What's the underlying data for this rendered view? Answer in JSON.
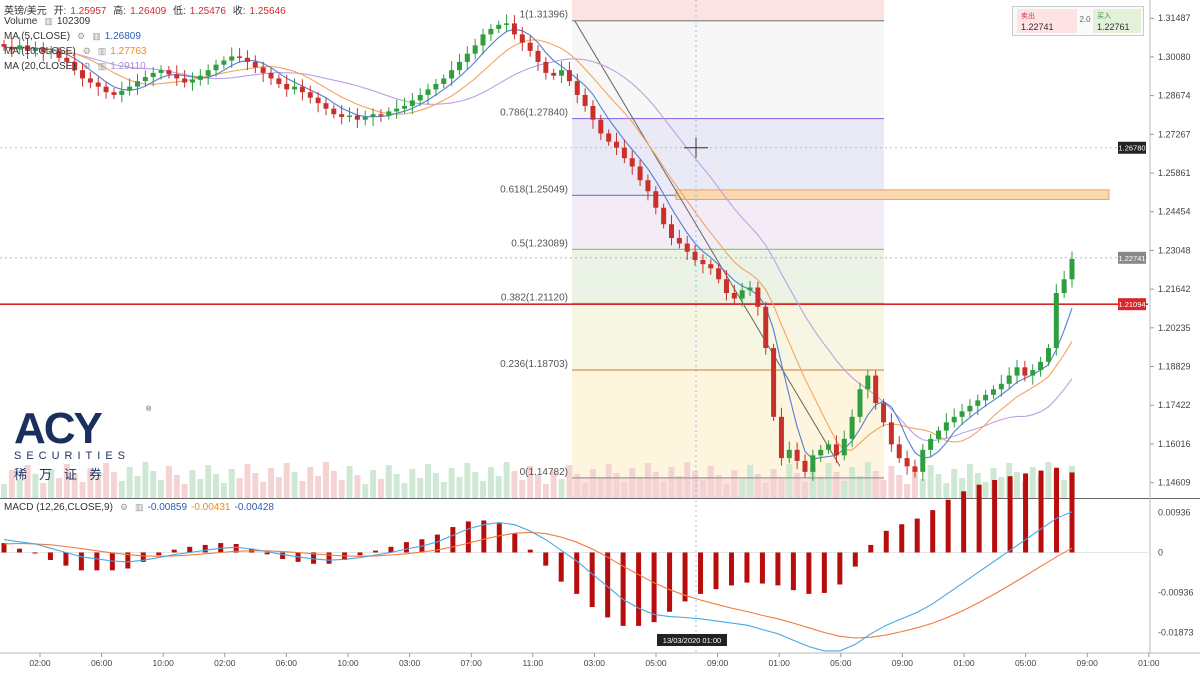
{
  "header": {
    "symbol": "英镑/美元",
    "open_label": "开:",
    "open": "1.25957",
    "high_label": "高:",
    "high": "1.26409",
    "low_label": "低:",
    "low": "1.25476",
    "close_label": "收:",
    "close": "1.25646",
    "volume_label": "Volume",
    "volume": "102309",
    "ma5_label": "MA (5,CLOSE)",
    "ma5": "1.26809",
    "ma10_label": "MA (10,CLOSE)",
    "ma10": "1.27763",
    "ma20_label": "MA (20,CLOSE)",
    "ma20": "1.29110",
    "macd_label": "MACD (12,26,CLOSE,9)",
    "macd_v1": "-0.00859",
    "macd_v2": "-0.00431",
    "macd_v3": "-0.00428"
  },
  "trade_box": {
    "sell_label": "卖出",
    "sell_price": "1.22741",
    "spread": "2.0",
    "buy_label": "买入",
    "buy_price": "1.22761"
  },
  "logo": {
    "mark": "ACY",
    "sub": "SECURITIES",
    "cn": "稀万证券",
    "reg": "®"
  },
  "chart_data": {
    "type": "candlestick",
    "y_ticks": [
      "1.31487",
      "1.30080",
      "1.28674",
      "1.27267",
      "1.25861",
      "1.24454",
      "1.23048",
      "1.21642",
      "1.20235",
      "1.18829",
      "1.17422",
      "1.16016",
      "1.14609"
    ],
    "macd_ticks": [
      "0.00936",
      "0",
      "-0.00936",
      "-0.01873"
    ],
    "x_ticks": [
      "02:00",
      "06:00",
      "10:00",
      "02:00",
      "06:00",
      "10:00",
      "03:00",
      "07:00",
      "11:00",
      "03:00",
      "05:00",
      "09:00",
      "01:00",
      "05:00",
      "09:00",
      "01:00",
      "05:00",
      "09:00",
      "01:00"
    ],
    "crosshair_x_label": "13/03/2020 01:00",
    "price_labels": {
      "crosshair": "1.26780",
      "current": "1.22741",
      "red_line": "1.21094"
    },
    "fib_levels": [
      {
        "label": "1(1.31396)",
        "value": 1.31396
      },
      {
        "label": "0.786(1.27840)",
        "value": 1.2784
      },
      {
        "label": "0.618(1.25049)",
        "value": 1.25049
      },
      {
        "label": "0.5(1.23089)",
        "value": 1.23089
      },
      {
        "label": "0.382(1.21120)",
        "value": 1.2112
      },
      {
        "label": "0.236(1.18703)",
        "value": 1.18703
      },
      {
        "label": "0(1.14782)",
        "value": 1.14782
      }
    ],
    "red_line": 1.21094,
    "crosshair_price": 1.2678,
    "zone": [
      1.249,
      1.2525
    ],
    "closes": [
      1.3045,
      1.3035,
      1.305,
      1.303,
      1.304,
      1.3025,
      1.303,
      1.3005,
      1.299,
      1.296,
      1.293,
      1.2915,
      1.29,
      1.288,
      1.287,
      1.2885,
      1.29,
      1.292,
      1.2935,
      1.295,
      1.296,
      1.2945,
      1.293,
      1.2915,
      1.2925,
      1.294,
      1.296,
      1.298,
      1.2995,
      1.301,
      1.3005,
      1.299,
      1.297,
      1.295,
      1.293,
      1.291,
      1.289,
      1.29,
      1.288,
      1.286,
      1.284,
      1.282,
      1.28,
      1.279,
      1.2795,
      1.278,
      1.279,
      1.28,
      1.2795,
      1.281,
      1.282,
      1.283,
      1.285,
      1.287,
      1.289,
      1.291,
      1.293,
      1.296,
      1.299,
      1.302,
      1.305,
      1.309,
      1.311,
      1.3125,
      1.313,
      1.309,
      1.306,
      1.303,
      1.299,
      1.295,
      1.294,
      1.296,
      1.292,
      1.287,
      1.283,
      1.278,
      1.273,
      1.27,
      1.2678,
      1.264,
      1.261,
      1.256,
      1.252,
      1.246,
      1.24,
      1.235,
      1.233,
      1.23,
      1.227,
      1.2255,
      1.224,
      1.22,
      1.215,
      1.213,
      1.216,
      1.217,
      1.21,
      1.195,
      1.17,
      1.155,
      1.158,
      1.154,
      1.15,
      1.156,
      1.158,
      1.16,
      1.156,
      1.162,
      1.17,
      1.18,
      1.185,
      1.175,
      1.168,
      1.16,
      1.155,
      1.152,
      1.15,
      1.158,
      1.162,
      1.165,
      1.168,
      1.17,
      1.172,
      1.174,
      1.176,
      1.178,
      1.18,
      1.182,
      1.185,
      1.188,
      1.185,
      1.187,
      1.19,
      1.195,
      1.215,
      1.22,
      1.2274
    ],
    "macd": [
      0.003,
      0.0025,
      0.002,
      0.001,
      0.0,
      -0.001,
      -0.0015,
      -0.002,
      -0.0022,
      -0.0018,
      -0.0012,
      -0.0005,
      0.0,
      0.0005,
      0.001,
      0.0012,
      0.0008,
      0.0002,
      -0.0005,
      -0.001,
      -0.0015,
      -0.0018,
      -0.0016,
      -0.0012,
      -0.0006,
      0.0,
      0.0008,
      0.0015,
      0.0025,
      0.004,
      0.0055,
      0.0065,
      0.007,
      0.0065,
      0.005,
      0.003,
      0.0005,
      -0.002,
      -0.005,
      -0.008,
      -0.011,
      -0.013,
      -0.0145,
      -0.015,
      -0.0152,
      -0.0155,
      -0.016,
      -0.0165,
      -0.017,
      -0.018,
      -0.019,
      -0.0205,
      -0.022,
      -0.023,
      -0.023,
      -0.0215,
      -0.019,
      -0.017,
      -0.0155,
      -0.014,
      -0.012,
      -0.0095,
      -0.007,
      -0.0045,
      -0.002,
      0.0005,
      0.003,
      0.0055,
      0.008,
      0.0095
    ],
    "signal": [
      0.002,
      0.0021,
      0.002,
      0.0018,
      0.0014,
      0.0009,
      0.0004,
      -0.0001,
      -0.0005,
      -0.0008,
      -0.0009,
      -0.0008,
      -0.0006,
      -0.0003,
      0.0,
      0.0003,
      0.0004,
      0.0004,
      0.0002,
      0.0,
      -0.0003,
      -0.0006,
      -0.0008,
      -0.0009,
      -0.0008,
      -0.0006,
      -0.0003,
      0.0001,
      0.0006,
      0.0013,
      0.0022,
      0.0031,
      0.0039,
      0.0045,
      0.0047,
      0.0044,
      0.0036,
      0.0024,
      0.0008,
      -0.0011,
      -0.0032,
      -0.0052,
      -0.0071,
      -0.0087,
      -0.01,
      -0.0111,
      -0.0121,
      -0.013,
      -0.0138,
      -0.0147,
      -0.0155,
      -0.0165,
      -0.0176,
      -0.0187,
      -0.0196,
      -0.02,
      -0.0198,
      -0.0193,
      -0.0185,
      -0.0176,
      -0.0165,
      -0.0151,
      -0.0135,
      -0.0117,
      -0.0097,
      -0.0076,
      -0.0054,
      -0.0032,
      -0.001,
      0.001
    ],
    "colors": {
      "up": "#2e9e3e",
      "down": "#c9302c",
      "ma5": "#4f7fd8",
      "ma10": "#f4a460",
      "ma20": "#b9a3e3",
      "macd_line": "#4aa8e0",
      "signal_line": "#f07b3f",
      "hist": "#b80d0d",
      "fib": "#aaaaaa",
      "redline": "#d9262a"
    }
  }
}
